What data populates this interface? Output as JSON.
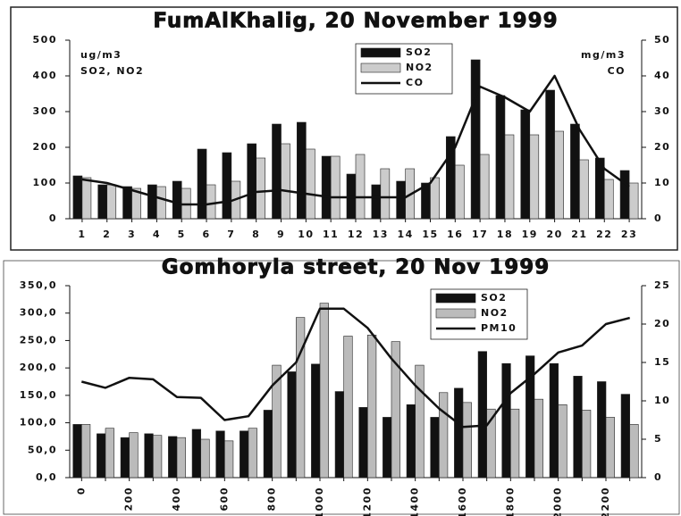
{
  "chart_data": [
    {
      "type": "bar",
      "title": "FumAlKhalig, 20 November 1999",
      "ylabel": [
        "ug/m3",
        "SO2, NO2"
      ],
      "y2label": [
        "mg/m3",
        "CO"
      ],
      "categories": [
        "1",
        "2",
        "3",
        "4",
        "5",
        "6",
        "7",
        "8",
        "9",
        "10",
        "11",
        "12",
        "13",
        "14",
        "15",
        "16",
        "17",
        "18",
        "19",
        "20",
        "21",
        "22",
        "23"
      ],
      "series": [
        {
          "name": "SO2",
          "color": "#111111",
          "values": [
            120,
            95,
            90,
            95,
            105,
            195,
            185,
            210,
            265,
            270,
            175,
            125,
            95,
            105,
            100,
            230,
            445,
            345,
            305,
            360,
            265,
            170,
            135
          ]
        },
        {
          "name": "NO2",
          "color": "#cccccc",
          "values": [
            115,
            95,
            85,
            90,
            85,
            95,
            105,
            170,
            210,
            195,
            175,
            180,
            140,
            140,
            115,
            150,
            180,
            235,
            235,
            245,
            165,
            110,
            100
          ]
        },
        {
          "name": "CO",
          "type": "line",
          "axis": "y2",
          "color": "#111111",
          "values": [
            11,
            10,
            8,
            6,
            4,
            4,
            5,
            7.5,
            8,
            7,
            6,
            6,
            6,
            6,
            10,
            20,
            37,
            34,
            30,
            40,
            25,
            14,
            9
          ]
        }
      ],
      "ylim": [
        0,
        500
      ],
      "yticks": [
        0,
        100,
        200,
        300,
        400,
        500
      ],
      "y2lim": [
        0,
        50
      ],
      "y2ticks": [
        0,
        10,
        20,
        30,
        40,
        50
      ]
    },
    {
      "type": "bar",
      "title": "Gomhoryla street, 20 Nov 1999",
      "categories": [
        "0",
        null,
        "200",
        null,
        "400",
        null,
        "600",
        null,
        "800",
        null,
        "1000",
        null,
        "1200",
        null,
        "1400",
        null,
        "1600",
        null,
        "1800",
        null,
        "2000",
        null,
        "2200",
        null
      ],
      "series": [
        {
          "name": "SO2",
          "color": "#111111",
          "values": [
            97,
            80,
            73,
            80,
            75,
            88,
            85,
            85,
            123,
            193,
            207,
            157,
            128,
            110,
            133,
            110,
            163,
            230,
            208,
            222,
            208,
            185,
            175,
            152
          ]
        },
        {
          "name": "NO2",
          "color": "#bbbbbb",
          "values": [
            97,
            90,
            82,
            77,
            73,
            70,
            67,
            90,
            205,
            292,
            318,
            258,
            260,
            248,
            205,
            155,
            137,
            125,
            125,
            143,
            133,
            123,
            110,
            97
          ]
        },
        {
          "name": "PM10",
          "type": "line",
          "axis": "y2",
          "color": "#111111",
          "values": [
            12.5,
            11.7,
            13,
            12.8,
            10.5,
            10.4,
            7.5,
            8,
            12,
            15,
            22,
            22,
            19.5,
            15.5,
            12,
            9,
            6.6,
            6.8,
            11,
            13.5,
            16.3,
            17.2,
            20,
            20.8
          ]
        }
      ],
      "ylim": [
        0,
        350
      ],
      "yticks": [
        {
          "value": 0,
          "label": "0,0"
        },
        {
          "value": 50,
          "label": "50,0"
        },
        {
          "value": 100,
          "label": "100,0"
        },
        {
          "value": 150,
          "label": "150,0"
        },
        {
          "value": 200,
          "label": "200,0"
        },
        {
          "value": 250,
          "label": "250,0"
        },
        {
          "value": 300,
          "label": "300,0"
        },
        {
          "value": 350,
          "label": "350,0"
        }
      ],
      "y2lim": [
        0,
        25
      ],
      "y2ticks": [
        0,
        5,
        10,
        15,
        20,
        25
      ]
    }
  ]
}
